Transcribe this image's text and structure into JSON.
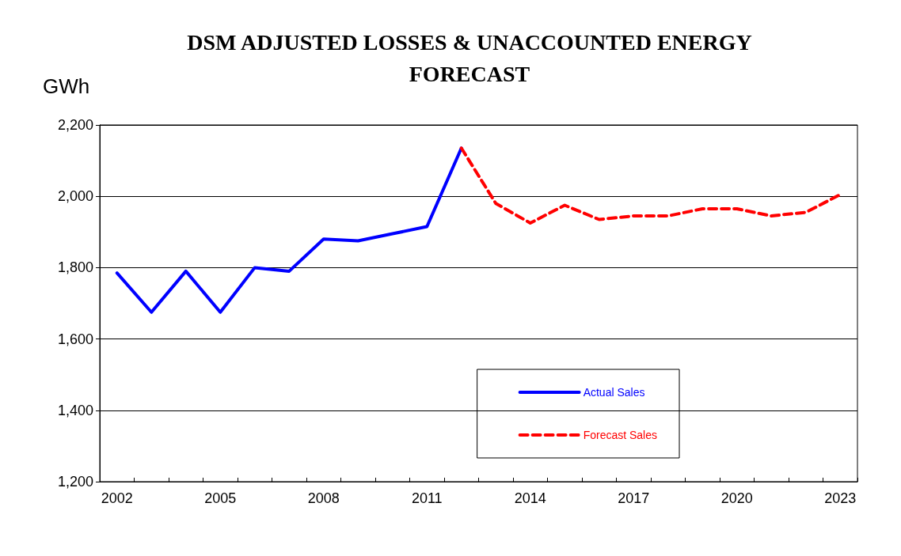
{
  "chart_data": {
    "type": "line",
    "title": "DSM ADJUSTED LOSSES & UNACCOUNTED ENERGY\nFORECAST",
    "ylabel": "GWh",
    "categories": [
      "2002",
      null,
      null,
      "2005",
      null,
      null,
      "2008",
      null,
      null,
      "2011",
      null,
      null,
      "2014",
      null,
      null,
      "2017",
      null,
      null,
      "2020",
      null,
      null,
      "2023"
    ],
    "series": [
      {
        "name": "Actual Sales",
        "color": "#0000ff",
        "line_style": "solid",
        "values": [
          1785,
          1675,
          1790,
          1675,
          1800,
          1790,
          1880,
          1875,
          1895,
          1915,
          2135,
          null,
          null,
          null,
          null,
          null,
          null,
          null,
          null,
          null,
          null,
          null
        ]
      },
      {
        "name": "Forecast Sales",
        "color": "#ff0000",
        "line_style": "dashed",
        "values": [
          null,
          null,
          null,
          null,
          null,
          null,
          null,
          null,
          null,
          null,
          2135,
          1980,
          1925,
          1975,
          1935,
          1945,
          1945,
          1965,
          1965,
          1945,
          1955,
          2005
        ]
      }
    ],
    "ylim": [
      1200,
      2200
    ],
    "yticks": [
      {
        "value": 1200,
        "label": "1,200"
      },
      {
        "value": 1400,
        "label": "1,400"
      },
      {
        "value": 1600,
        "label": "1,600"
      },
      {
        "value": 1800,
        "label": "1,800"
      },
      {
        "value": 2000,
        "label": "2,000"
      },
      {
        "value": 2200,
        "label": "2,200"
      }
    ],
    "grid": "y",
    "legend": "bottom right",
    "marker": "none"
  }
}
